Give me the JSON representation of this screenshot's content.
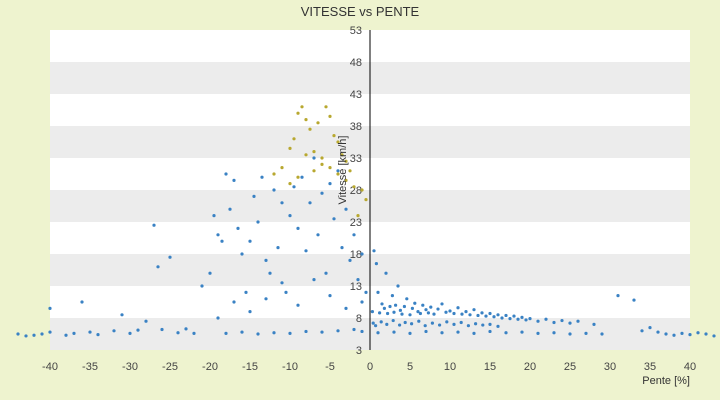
{
  "chart_data": {
    "type": "scatter",
    "title": "VITESSE vs PENTE",
    "xlabel": "Pente [%]",
    "ylabel": "Vitesse [km/h]",
    "xlim": [
      -40,
      40
    ],
    "ylim": [
      3,
      53
    ],
    "x_ticks": [
      -40,
      -35,
      -30,
      -25,
      -20,
      -15,
      -10,
      -5,
      0,
      5,
      10,
      15,
      20,
      25,
      30,
      35,
      40
    ],
    "y_ticks": [
      3,
      8,
      13,
      18,
      23,
      28,
      33,
      38,
      43,
      48,
      53
    ],
    "grid": "horizontal bands",
    "colors": {
      "points": "#3a82c4",
      "highlight": "#b8a830",
      "band": "#ececec",
      "plot_bg": "#ffffff",
      "page_bg": "#eef3cf"
    },
    "series": [
      {
        "color": "#3a82c4",
        "points": [
          [
            -44,
            5.5
          ],
          [
            -43,
            5.2
          ],
          [
            -42,
            5.3
          ],
          [
            -41,
            5.5
          ],
          [
            -40,
            5.8
          ],
          [
            -40,
            9.5
          ],
          [
            -38,
            5.3
          ],
          [
            -37,
            5.6
          ],
          [
            -36,
            10.5
          ],
          [
            -35,
            5.8
          ],
          [
            -34,
            5.4
          ],
          [
            -32,
            6.0
          ],
          [
            -31,
            8.5
          ],
          [
            -30,
            5.6
          ],
          [
            -29,
            6.1
          ],
          [
            -28,
            7.5
          ],
          [
            -27,
            22.5
          ],
          [
            -26.5,
            16.0
          ],
          [
            -26,
            6.2
          ],
          [
            -25,
            17.5
          ],
          [
            -24,
            5.7
          ],
          [
            -23,
            6.3
          ],
          [
            -22,
            5.6
          ],
          [
            -21,
            13.0
          ],
          [
            -20,
            15.0
          ],
          [
            -19.5,
            24.0
          ],
          [
            -19,
            21.0
          ],
          [
            -18.5,
            20.0
          ],
          [
            -18,
            30.5
          ],
          [
            -17.5,
            25.0
          ],
          [
            -17,
            29.5
          ],
          [
            -16.5,
            22.0
          ],
          [
            -16,
            18.0
          ],
          [
            -15.5,
            12.0
          ],
          [
            -15,
            20.0
          ],
          [
            -14.5,
            27.0
          ],
          [
            -14,
            23.0
          ],
          [
            -13.5,
            30.0
          ],
          [
            -13,
            17.0
          ],
          [
            -12.5,
            15.0
          ],
          [
            -12,
            28.0
          ],
          [
            -11.5,
            19.0
          ],
          [
            -11,
            26.0
          ],
          [
            -10.5,
            12.0
          ],
          [
            -10,
            24.0
          ],
          [
            -9.5,
            28.5
          ],
          [
            -9,
            22.0
          ],
          [
            -8.5,
            30.0
          ],
          [
            -8,
            18.5
          ],
          [
            -7.5,
            26.0
          ],
          [
            -7,
            33.0
          ],
          [
            -6.5,
            21.0
          ],
          [
            -6,
            27.5
          ],
          [
            -5.5,
            15.0
          ],
          [
            -5,
            29.0
          ],
          [
            -4.5,
            23.5
          ],
          [
            -4,
            31.0
          ],
          [
            -3.5,
            19.0
          ],
          [
            -3,
            25.0
          ],
          [
            -2.5,
            17.0
          ],
          [
            -2,
            21.0
          ],
          [
            -1.5,
            14.0
          ],
          [
            -1,
            18.0
          ],
          [
            -0.5,
            12.0
          ],
          [
            -19,
            8.0
          ],
          [
            -17,
            10.5
          ],
          [
            -15,
            9.0
          ],
          [
            -13,
            11.0
          ],
          [
            -11,
            13.5
          ],
          [
            -9,
            10.0
          ],
          [
            -7,
            14.0
          ],
          [
            -5,
            11.5
          ],
          [
            -3,
            9.5
          ],
          [
            -1,
            10.5
          ],
          [
            -18,
            5.6
          ],
          [
            -16,
            5.8
          ],
          [
            -14,
            5.5
          ],
          [
            -12,
            5.7
          ],
          [
            -10,
            5.6
          ],
          [
            -8,
            5.9
          ],
          [
            -6,
            5.8
          ],
          [
            -4,
            6.0
          ],
          [
            -2,
            6.2
          ],
          [
            -1,
            5.9
          ],
          [
            0.3,
            9.0
          ],
          [
            0.5,
            18.5
          ],
          [
            0.8,
            16.5
          ],
          [
            1,
            12.0
          ],
          [
            1.2,
            8.8
          ],
          [
            1.5,
            10.2
          ],
          [
            1.8,
            9.5
          ],
          [
            2,
            15.0
          ],
          [
            2.2,
            8.7
          ],
          [
            2.5,
            9.8
          ],
          [
            2.8,
            11.5
          ],
          [
            3,
            8.9
          ],
          [
            3.2,
            10.0
          ],
          [
            3.5,
            13.0
          ],
          [
            3.8,
            9.2
          ],
          [
            4,
            8.6
          ],
          [
            4.3,
            9.8
          ],
          [
            4.6,
            11.0
          ],
          [
            5,
            8.5
          ],
          [
            5.3,
            9.5
          ],
          [
            5.6,
            10.3
          ],
          [
            6,
            9.0
          ],
          [
            6.3,
            8.7
          ],
          [
            6.6,
            10.0
          ],
          [
            7,
            9.3
          ],
          [
            7.3,
            8.8
          ],
          [
            7.6,
            9.7
          ],
          [
            8,
            8.6
          ],
          [
            8.5,
            9.4
          ],
          [
            9,
            10.2
          ],
          [
            9.5,
            8.9
          ],
          [
            10,
            9.1
          ],
          [
            10.5,
            8.7
          ],
          [
            11,
            9.6
          ],
          [
            11.5,
            8.6
          ],
          [
            12,
            9.0
          ],
          [
            12.5,
            8.5
          ],
          [
            13,
            9.3
          ],
          [
            13.5,
            8.4
          ],
          [
            14,
            8.8
          ],
          [
            14.5,
            8.3
          ],
          [
            15,
            8.7
          ],
          [
            15.5,
            8.2
          ],
          [
            16,
            8.5
          ],
          [
            16.5,
            8.0
          ],
          [
            17,
            8.4
          ],
          [
            17.5,
            7.9
          ],
          [
            18,
            8.3
          ],
          [
            18.5,
            7.8
          ],
          [
            19,
            8.1
          ],
          [
            19.5,
            7.7
          ],
          [
            20,
            7.9
          ],
          [
            21,
            7.5
          ],
          [
            22,
            7.8
          ],
          [
            23,
            7.3
          ],
          [
            24,
            7.6
          ],
          [
            25,
            7.2
          ],
          [
            26,
            7.5
          ],
          [
            28,
            7.0
          ],
          [
            31,
            11.5
          ],
          [
            33,
            10.8
          ],
          [
            34,
            6.0
          ],
          [
            35,
            6.5
          ],
          [
            36,
            5.8
          ],
          [
            37,
            5.5
          ],
          [
            38,
            5.3
          ],
          [
            39,
            5.6
          ],
          [
            40,
            5.4
          ],
          [
            41,
            5.7
          ],
          [
            42,
            5.5
          ],
          [
            43,
            5.2
          ],
          [
            1,
            5.7
          ],
          [
            3,
            5.8
          ],
          [
            5,
            5.6
          ],
          [
            7,
            5.9
          ],
          [
            9,
            5.7
          ],
          [
            11,
            5.8
          ],
          [
            13,
            5.6
          ],
          [
            15,
            5.9
          ],
          [
            17,
            5.7
          ],
          [
            19,
            5.8
          ],
          [
            21,
            5.6
          ],
          [
            23,
            5.7
          ],
          [
            25,
            5.5
          ],
          [
            27,
            5.6
          ],
          [
            29,
            5.5
          ],
          [
            0.4,
            7.2
          ],
          [
            0.7,
            6.8
          ],
          [
            1.4,
            7.4
          ],
          [
            2.1,
            7.0
          ],
          [
            2.9,
            7.6
          ],
          [
            3.7,
            6.9
          ],
          [
            4.4,
            7.3
          ],
          [
            5.2,
            7.1
          ],
          [
            6.1,
            7.5
          ],
          [
            6.9,
            6.8
          ],
          [
            7.8,
            7.2
          ],
          [
            8.7,
            6.9
          ],
          [
            9.6,
            7.4
          ],
          [
            10.5,
            7.0
          ],
          [
            11.4,
            7.3
          ],
          [
            12.3,
            6.8
          ],
          [
            13.2,
            7.1
          ],
          [
            14.1,
            6.9
          ],
          [
            15.0,
            7.0
          ],
          [
            16.0,
            6.7
          ]
        ]
      },
      {
        "color": "#b8a830",
        "points": [
          [
            -10,
            34.5
          ],
          [
            -9.5,
            36.0
          ],
          [
            -9,
            40.0
          ],
          [
            -8.5,
            41.0
          ],
          [
            -8,
            39.0
          ],
          [
            -7.5,
            37.5
          ],
          [
            -7,
            34.0
          ],
          [
            -6.5,
            38.5
          ],
          [
            -6,
            32.0
          ],
          [
            -5.5,
            41.0
          ],
          [
            -5,
            39.5
          ],
          [
            -4.5,
            36.5
          ],
          [
            -4,
            35.5
          ],
          [
            -3.5,
            33.5
          ],
          [
            -3,
            32.5
          ],
          [
            -2.5,
            31.0
          ],
          [
            -2,
            28.5
          ],
          [
            -1.5,
            24.0
          ],
          [
            -1,
            28.0
          ],
          [
            -0.5,
            26.5
          ],
          [
            -3,
            29.5
          ],
          [
            -4,
            30.5
          ],
          [
            -5,
            31.5
          ],
          [
            -6,
            33.0
          ],
          [
            -7,
            31.0
          ],
          [
            -8,
            33.5
          ],
          [
            -9,
            30.0
          ],
          [
            -10,
            29.0
          ],
          [
            -11,
            31.5
          ],
          [
            -12,
            30.5
          ]
        ]
      }
    ]
  }
}
